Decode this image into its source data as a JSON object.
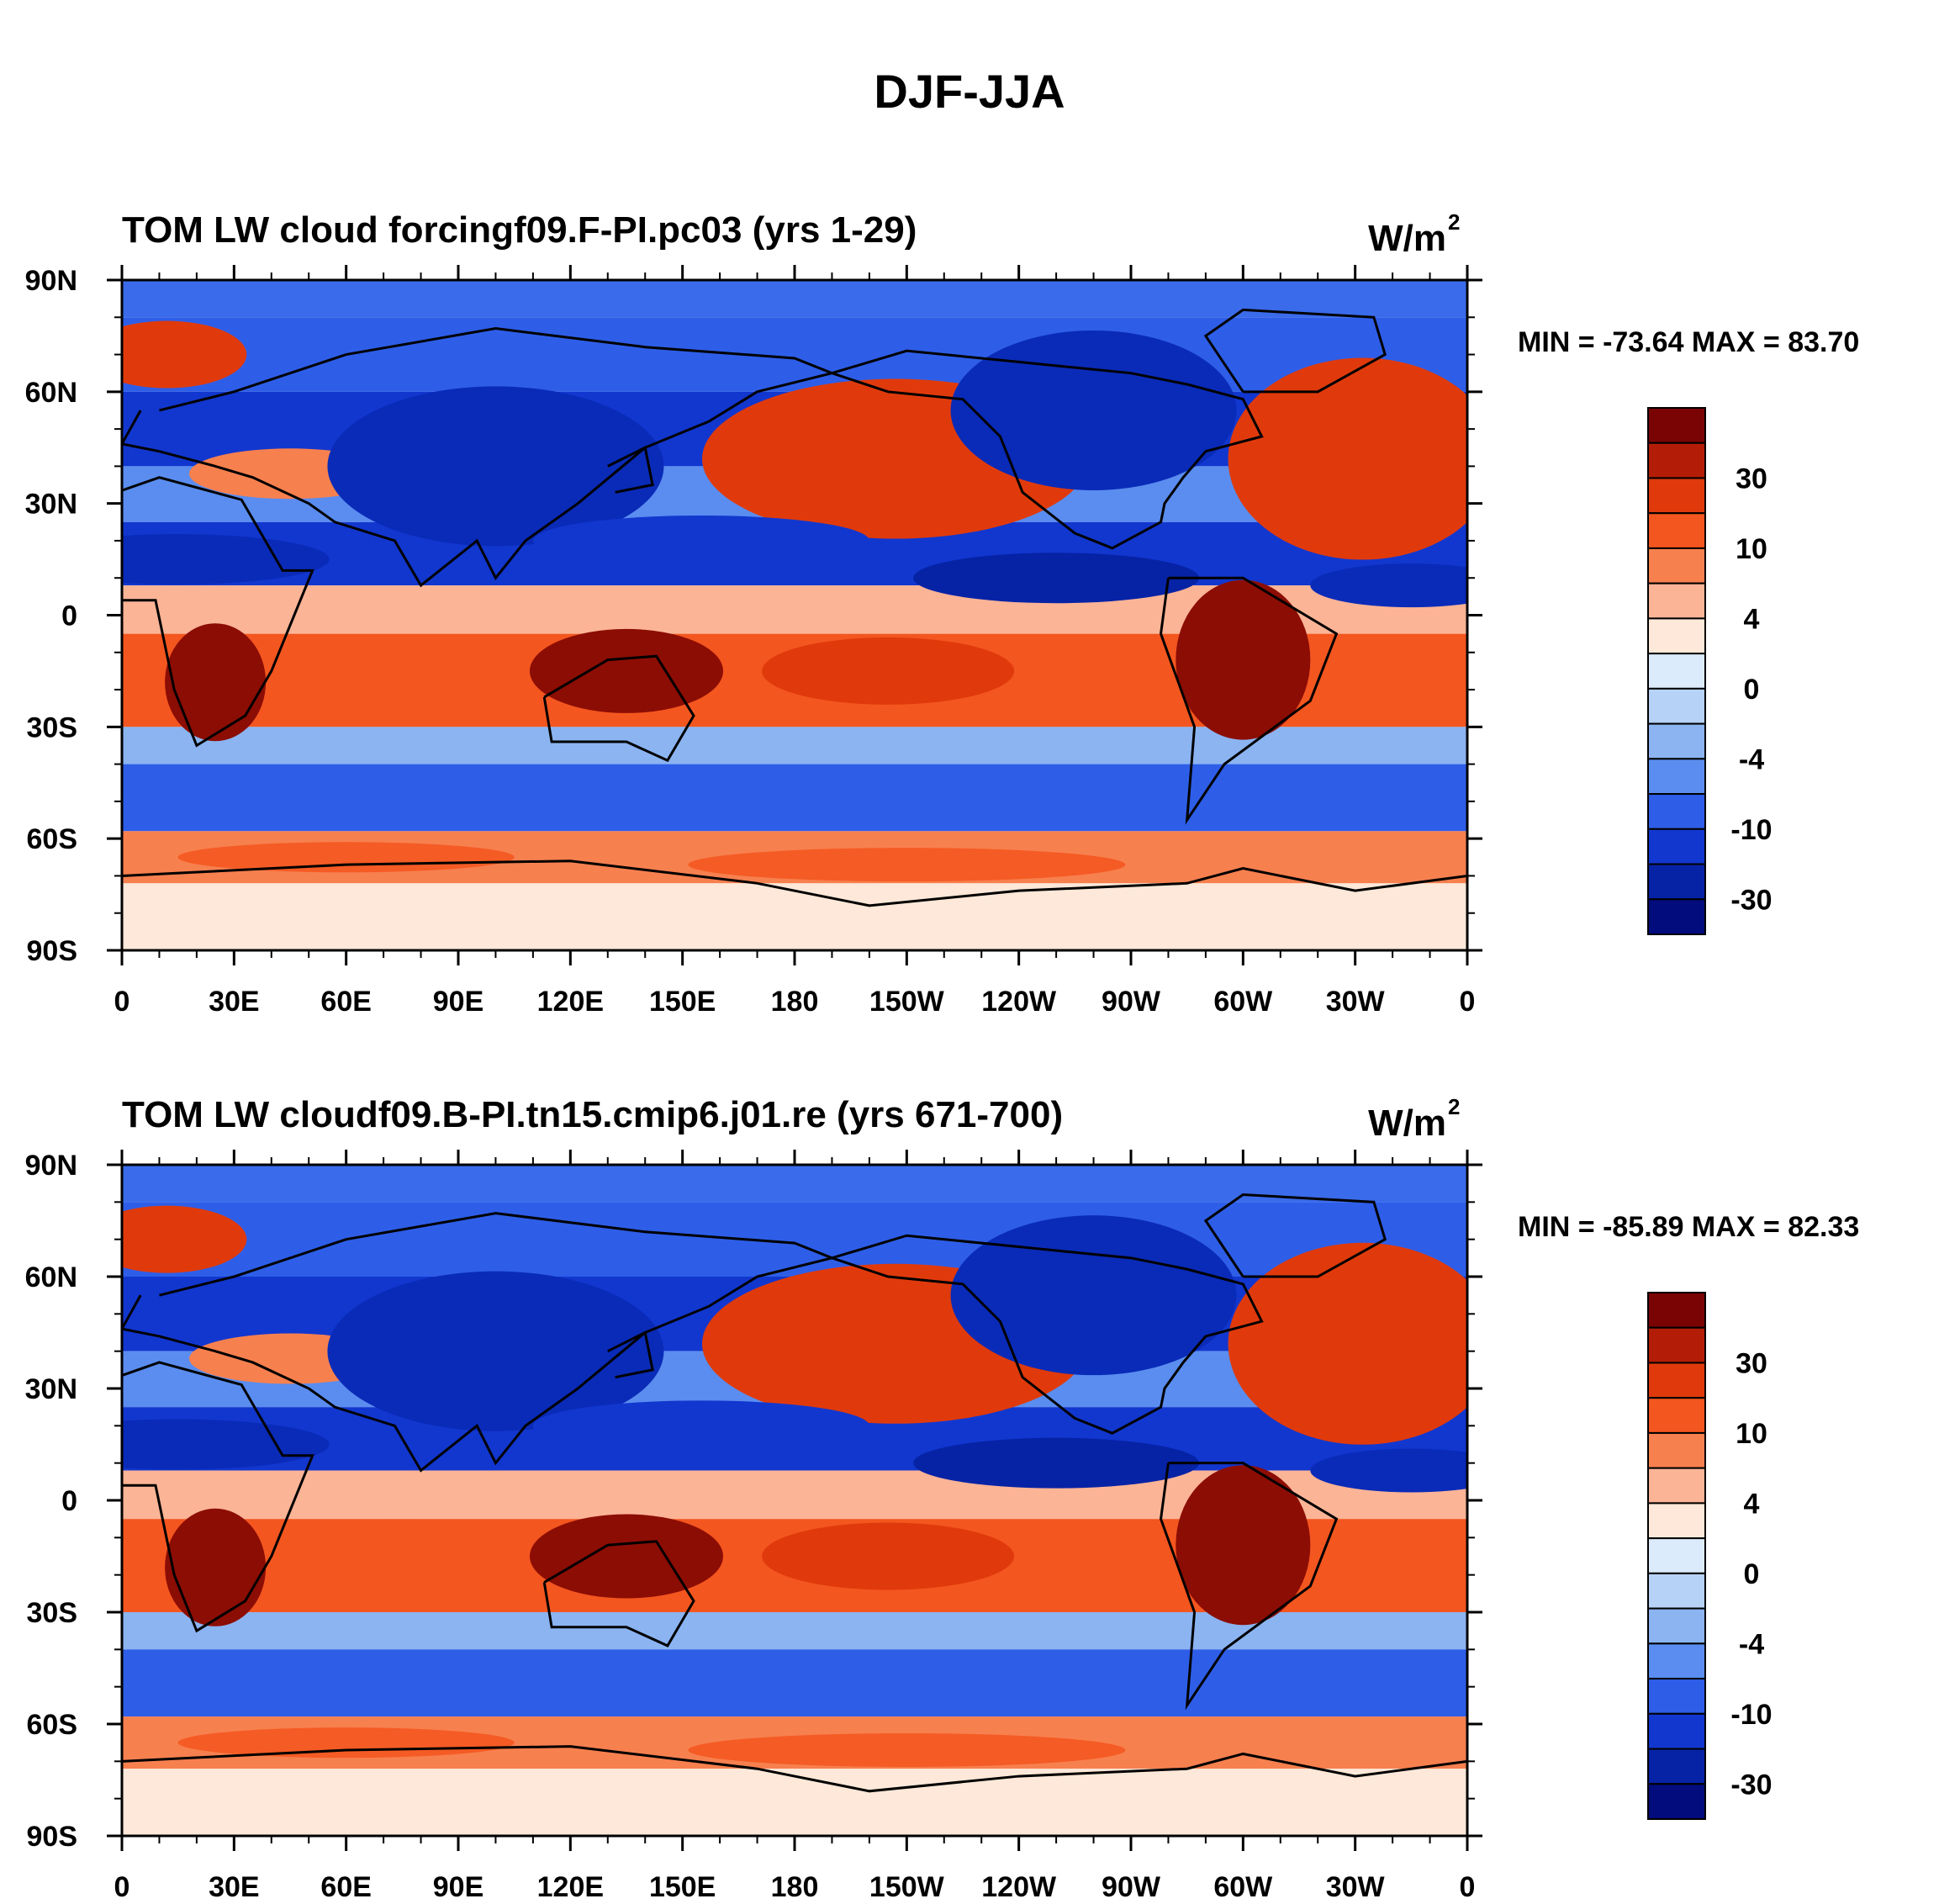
{
  "figure_title": "DJF-JJA",
  "chart_data": [
    {
      "type": "heatmap",
      "title": "TOM LW cloud forcingf09.F-PI.pc03 (yrs 1-29)",
      "units": "W/m",
      "units_exponent": "2",
      "stats_text": "MIN = -73.64 MAX =  83.70",
      "min": -73.64,
      "max": 83.7,
      "x_ticks": [
        "0",
        "30E",
        "60E",
        "90E",
        "120E",
        "150E",
        "180",
        "150W",
        "120W",
        "90W",
        "60W",
        "30W",
        "0"
      ],
      "y_ticks": [
        "90N",
        "60N",
        "30N",
        "0",
        "30S",
        "60S",
        "90S"
      ],
      "xlim": [
        0,
        360
      ],
      "ylim": [
        -90,
        90
      ],
      "colorbar_levels": [
        "30",
        "10",
        "4",
        "0",
        "-4",
        "-10",
        "-30"
      ]
    },
    {
      "type": "heatmap",
      "title": "TOM LW cloudf09.B-PI.tn15.cmip6.j01.re (yrs 671-700)",
      "units": "W/m",
      "units_exponent": "2",
      "stats_text": "MIN = -85.89 MAX =  82.33",
      "min": -85.89,
      "max": 82.33,
      "x_ticks": [
        "0",
        "30E",
        "60E",
        "90E",
        "120E",
        "150E",
        "180",
        "150W",
        "120W",
        "90W",
        "60W",
        "30W",
        "0"
      ],
      "y_ticks": [
        "90N",
        "60N",
        "30N",
        "0",
        "30S",
        "60S",
        "90S"
      ],
      "xlim": [
        0,
        360
      ],
      "ylim": [
        -90,
        90
      ],
      "colorbar_levels": [
        "30",
        "10",
        "4",
        "0",
        "-4",
        "-10",
        "-30"
      ]
    }
  ],
  "colorbar_colors": [
    "#7a0403",
    "#b31d07",
    "#e03a0c",
    "#f4561f",
    "#f7804f",
    "#fbb496",
    "#fde8d9",
    "#dcebfb",
    "#b7d2f7",
    "#8bb4f1",
    "#5a8def",
    "#2e5ee8",
    "#1237cf",
    "#0623a6",
    "#030c7c"
  ],
  "colors": {
    "ocean_cold": "#3a6bea",
    "ocean_deep": "#0a2bb8",
    "warm": "#e03a0c",
    "hot": "#8c0d04",
    "pale_warm": "#fde3d0",
    "pale_cold": "#cfe0fa",
    "coast": "#000000"
  }
}
